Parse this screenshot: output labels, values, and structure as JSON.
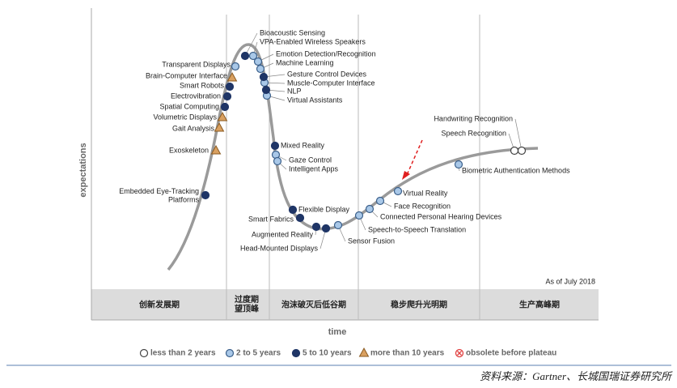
{
  "axes": {
    "y": "expectations",
    "x": "time"
  },
  "note": "As of July 2018",
  "phases": [
    "创新发展期",
    [
      "过度期",
      "望顶峰"
    ],
    "泡沫破灭后低谷期",
    "稳步爬升光明期",
    "生产高峰期"
  ],
  "legend": [
    {
      "label": "less than 2 years",
      "technologies": [
        "Handwriting Recognition",
        "Speech Recognition"
      ]
    },
    {
      "label": "2 to 5 years",
      "technologies": [
        "VPA-Enabled Wireless Speakers",
        "Emotion Detection/Recognition",
        "Machine Learning",
        "Muscle-Computer Interface",
        "Virtual Assistants",
        "Transparent Displays",
        "Gaze Control",
        "Intelligent Apps",
        "Sensor Fusion",
        "Speech-to-Speech Translation",
        "Connected Personal Hearing Devices",
        "Face Recognition",
        "Virtual Reality",
        "Biometric Authentication Methods"
      ]
    },
    {
      "label": "5 to 10 years",
      "technologies": [
        "Bioacoustic Sensing",
        "Gesture Control Devices",
        "NLP",
        "Smart Robots",
        "Electrovibration",
        "Spatial Computing",
        [
          "Embedded Eye-Tracking",
          "Platforms"
        ],
        "Mixed Reality",
        "Flexible Display",
        "Smart Fabrics",
        "Augmented Reality",
        "Head-Mounted Displays"
      ]
    },
    {
      "label": "more than 10 years",
      "technologies": [
        "Brain-Computer Interface",
        "Volumetric Displays",
        "Gait Analysis",
        "Exoskeleton"
      ]
    },
    {
      "label": "obsolete before plateau",
      "technologies": []
    }
  ],
  "source": "资料来源：Gartner、长城国瑞证券研究所"
}
